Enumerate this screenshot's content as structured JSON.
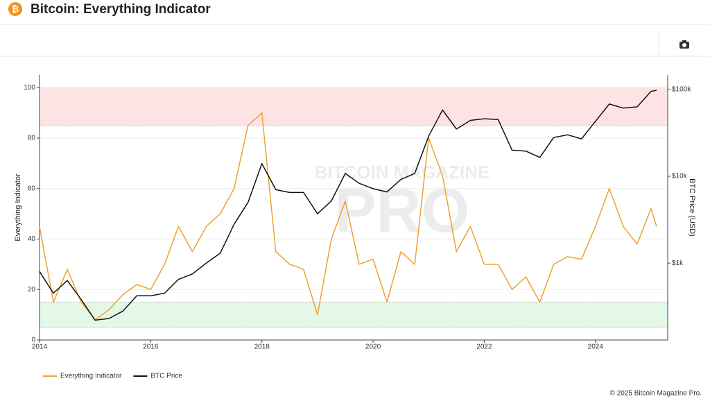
{
  "header": {
    "title": "Bitcoin: Everything Indicator"
  },
  "chart_data": {
    "type": "line",
    "watermark": [
      "BITCOIN MAGAZINE",
      "PRO"
    ],
    "y_label": "Everything Indicator",
    "y2_label": "BTC Price (USD)",
    "x": [
      2014,
      2014.25,
      2014.5,
      2014.75,
      2015,
      2015.25,
      2015.5,
      2015.75,
      2016,
      2016.25,
      2016.5,
      2016.75,
      2017,
      2017.25,
      2017.5,
      2017.75,
      2018,
      2018.25,
      2018.5,
      2018.75,
      2019,
      2019.25,
      2019.5,
      2019.75,
      2020,
      2020.25,
      2020.5,
      2020.75,
      2021,
      2021.25,
      2021.5,
      2021.75,
      2022,
      2022.25,
      2022.5,
      2022.75,
      2023,
      2023.25,
      2023.5,
      2023.75,
      2024,
      2024.25,
      2024.5,
      2024.75,
      2025,
      2025.1
    ],
    "series": [
      {
        "name": "Everything Indicator",
        "color": "#f0a030",
        "values": [
          45,
          15,
          28,
          15,
          8,
          12,
          18,
          22,
          20,
          30,
          45,
          35,
          45,
          50,
          60,
          85,
          90,
          35,
          30,
          28,
          10,
          40,
          55,
          30,
          32,
          15,
          35,
          30,
          80,
          65,
          35,
          45,
          30,
          30,
          20,
          25,
          15,
          30,
          33,
          32,
          45,
          60,
          45,
          38,
          52,
          45
        ]
      },
      {
        "name": "BTC Price",
        "color": "#111111",
        "axis": "y2",
        "values": [
          800,
          450,
          630,
          380,
          220,
          230,
          280,
          420,
          420,
          450,
          650,
          750,
          1000,
          1300,
          2800,
          5000,
          14000,
          7000,
          6500,
          6500,
          3700,
          5200,
          10800,
          8300,
          7200,
          6600,
          9200,
          10800,
          29000,
          58000,
          35000,
          44000,
          46000,
          45000,
          20000,
          19500,
          16500,
          28000,
          30000,
          27000,
          43000,
          68000,
          61000,
          63000,
          95000,
          98000
        ]
      }
    ],
    "bands": [
      {
        "from": 85,
        "to": 100,
        "color": "#fde3e3"
      },
      {
        "from": 5,
        "to": 15,
        "color": "#e4f8e8"
      }
    ],
    "xlim": [
      2014,
      2025.3
    ],
    "xticks": [
      2014,
      2016,
      2018,
      2020,
      2022,
      2024
    ],
    "ylim": [
      0,
      105
    ],
    "yticks": [
      0,
      20,
      40,
      60,
      80,
      100
    ],
    "y2lim": [
      130,
      147000
    ],
    "y2scale": "log",
    "y2ticks": [
      {
        "value": 1000,
        "label": "$1k"
      },
      {
        "value": 10000,
        "label": "$10k"
      },
      {
        "value": 100000,
        "label": "$100k"
      }
    ],
    "grid": true,
    "legend": "bottom-left"
  },
  "footer": {
    "copyright": "© 2025 Bitcoin Magazine Pro."
  }
}
